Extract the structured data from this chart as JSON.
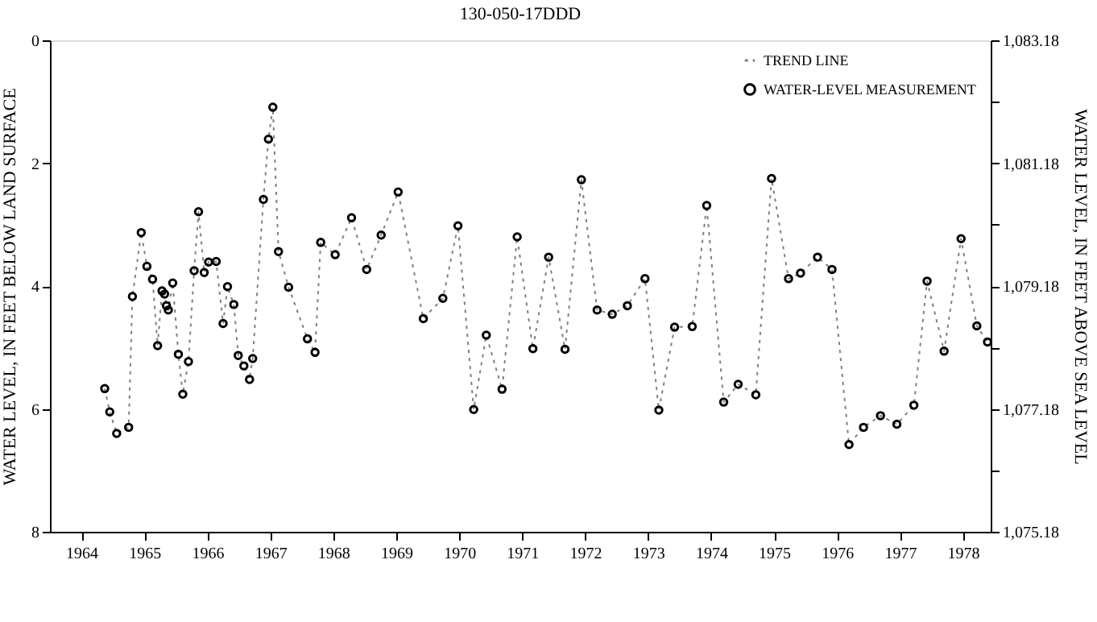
{
  "chart_data": {
    "type": "line",
    "title": "130-050-17DDD",
    "ylabel": "WATER LEVEL, IN FEET BELOW LAND SURFACE",
    "y2label": "WATER LEVEL, IN FEET ABOVE SEA LEVEL",
    "x": [
      1964.87,
      1964.95,
      1965.06,
      1965.25,
      1965.31,
      1965.45,
      1965.54,
      1965.63,
      1965.71,
      1965.78,
      1965.82,
      1965.85,
      1965.88,
      1965.95,
      1966.04,
      1966.11,
      1966.2,
      1966.29,
      1966.36,
      1966.45,
      1966.52,
      1966.64,
      1966.75,
      1966.82,
      1966.92,
      1966.99,
      1967.08,
      1967.17,
      1967.22,
      1967.39,
      1967.47,
      1967.54,
      1967.63,
      1967.79,
      1968.09,
      1968.21,
      1968.3,
      1968.53,
      1968.79,
      1969.03,
      1969.26,
      1969.53,
      1969.93,
      1970.24,
      1970.48,
      1970.73,
      1970.93,
      1971.18,
      1971.42,
      1971.67,
      1971.92,
      1972.18,
      1972.44,
      1972.69,
      1972.93,
      1973.17,
      1973.45,
      1973.67,
      1973.92,
      1974.2,
      1974.43,
      1974.7,
      1974.93,
      1975.21,
      1975.46,
      1975.73,
      1975.92,
      1976.19,
      1976.42,
      1976.69,
      1976.92,
      1977.19,
      1977.45,
      1977.72,
      1977.93,
      1978.2,
      1978.47,
      1978.72,
      1978.89
    ],
    "series": [
      {
        "name": "TREND LINE",
        "type": "line",
        "color": "#808080",
        "line_style": "dotted",
        "marker": "none",
        "values": [
          5.67,
          6.05,
          6.4,
          6.3,
          4.17,
          3.13,
          3.68,
          3.89,
          4.97,
          4.08,
          4.13,
          4.32,
          4.39,
          3.95,
          5.11,
          5.76,
          5.23,
          3.75,
          2.79,
          3.78,
          3.61,
          3.6,
          4.61,
          4.01,
          4.3,
          5.13,
          5.3,
          5.52,
          5.18,
          2.59,
          1.61,
          1.09,
          3.44,
          4.02,
          4.86,
          5.08,
          3.29,
          3.49,
          2.89,
          3.73,
          3.17,
          2.47,
          4.53,
          4.2,
          3.02,
          6.01,
          4.8,
          5.68,
          3.2,
          5.02,
          3.53,
          5.03,
          2.27,
          4.39,
          4.46,
          4.32,
          3.88,
          6.02,
          4.67,
          4.66,
          2.69,
          5.89,
          5.6,
          5.77,
          2.25,
          3.88,
          3.79,
          3.53,
          3.73,
          6.58,
          6.3,
          6.11,
          6.25,
          5.94,
          3.92,
          5.06,
          3.23,
          4.65,
          4.91
        ]
      },
      {
        "name": "WATER-LEVEL MEASUREMENT",
        "type": "scatter",
        "color": "#000000",
        "marker": "circle",
        "values": [
          5.67,
          6.05,
          6.4,
          6.3,
          4.17,
          3.13,
          3.68,
          3.89,
          4.97,
          4.08,
          4.13,
          4.32,
          4.39,
          3.95,
          5.11,
          5.76,
          5.23,
          3.75,
          2.79,
          3.78,
          3.61,
          3.6,
          4.61,
          4.01,
          4.3,
          5.13,
          5.3,
          5.52,
          5.18,
          2.59,
          1.61,
          1.09,
          3.44,
          4.02,
          4.86,
          5.08,
          3.29,
          3.49,
          2.89,
          3.73,
          3.17,
          2.47,
          4.53,
          4.2,
          3.02,
          6.01,
          4.8,
          5.68,
          3.2,
          5.02,
          3.53,
          5.03,
          2.27,
          4.39,
          4.46,
          4.32,
          3.88,
          6.02,
          4.67,
          4.66,
          2.69,
          5.89,
          5.6,
          5.77,
          2.25,
          3.88,
          3.79,
          3.53,
          3.73,
          6.58,
          6.3,
          6.11,
          6.25,
          5.94,
          3.92,
          5.06,
          3.23,
          4.65,
          4.91
        ]
      }
    ],
    "xlim": [
      1964.0,
      1978.94
    ],
    "xticks": [
      {
        "value": 1964.5,
        "label": "1964"
      },
      {
        "value": 1965.5,
        "label": "1965"
      },
      {
        "value": 1966.5,
        "label": "1966"
      },
      {
        "value": 1967.5,
        "label": "1967"
      },
      {
        "value": 1968.5,
        "label": "1968"
      },
      {
        "value": 1969.5,
        "label": "1969"
      },
      {
        "value": 1970.5,
        "label": "1970"
      },
      {
        "value": 1971.5,
        "label": "1971"
      },
      {
        "value": 1972.5,
        "label": "1972"
      },
      {
        "value": 1973.5,
        "label": "1973"
      },
      {
        "value": 1974.5,
        "label": "1974"
      },
      {
        "value": 1975.5,
        "label": "1975"
      },
      {
        "value": 1976.5,
        "label": "1976"
      },
      {
        "value": 1977.5,
        "label": "1977"
      },
      {
        "value": 1978.5,
        "label": "1978"
      }
    ],
    "ylim": [
      8,
      0
    ],
    "yticks": [
      0,
      {
        "value": 1,
        "label": null
      },
      2,
      {
        "value": 3,
        "label": null
      },
      4,
      {
        "value": 5,
        "label": null
      },
      6,
      {
        "value": 7,
        "label": null
      },
      8
    ],
    "y2lim": [
      1075.18,
      1083.18
    ],
    "y2ticks": [
      {
        "value": 1075.18,
        "label": "1,075.18"
      },
      {
        "value": 1076.18,
        "label": null
      },
      {
        "value": 1077.18,
        "label": "1,077.18"
      },
      {
        "value": 1078.18,
        "label": null
      },
      {
        "value": 1079.18,
        "label": "1,079.18"
      },
      {
        "value": 1080.18,
        "label": null
      },
      {
        "value": 1081.18,
        "label": "1,081.18"
      },
      {
        "value": 1082.18,
        "label": null
      },
      {
        "value": 1083.18,
        "label": "1,083.18"
      }
    ],
    "grid": false,
    "legend": "top right"
  }
}
